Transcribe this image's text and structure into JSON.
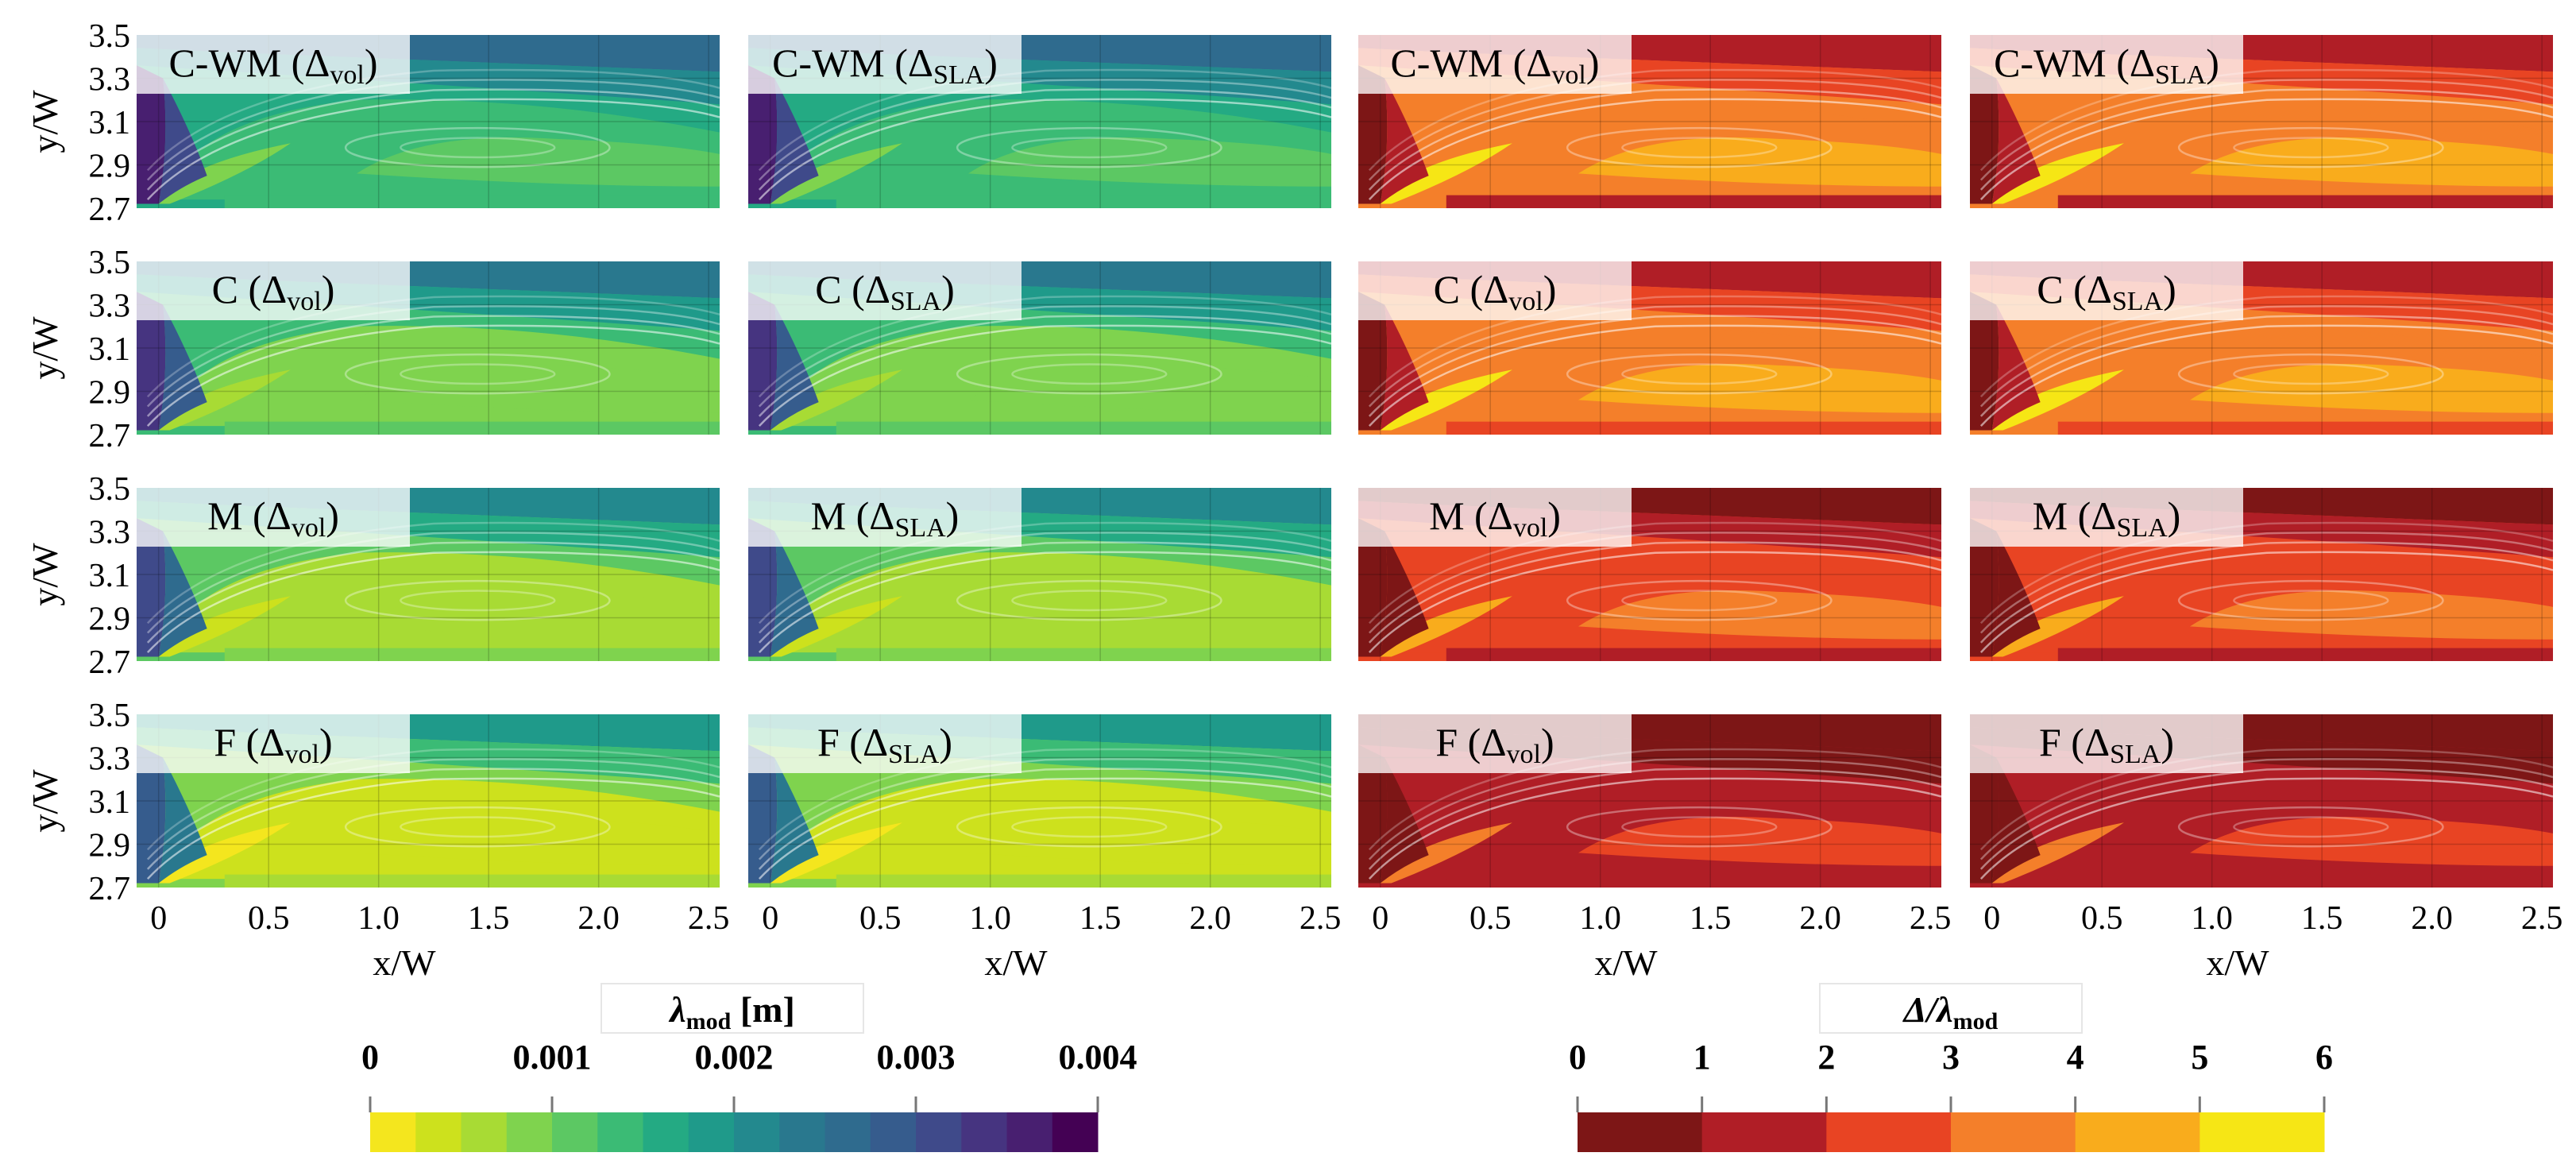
{
  "chart_data": {
    "type": "heatmap",
    "rows": [
      "C-WM",
      "C",
      "M",
      "F"
    ],
    "columns": [
      {
        "metric": "lambda_mod",
        "filter": "vol"
      },
      {
        "metric": "lambda_mod",
        "filter": "SLA"
      },
      {
        "metric": "delta_ratio",
        "filter": "vol"
      },
      {
        "metric": "delta_ratio",
        "filter": "SLA"
      }
    ],
    "panels": [
      {
        "row": 0,
        "col": 0,
        "label_base": "C-WM (Δ",
        "label_sub": "vol",
        "label_close": ")"
      },
      {
        "row": 0,
        "col": 1,
        "label_base": "C-WM (Δ",
        "label_sub": "SLA",
        "label_close": ")"
      },
      {
        "row": 0,
        "col": 2,
        "label_base": "C-WM (Δ",
        "label_sub": "vol",
        "label_close": ")"
      },
      {
        "row": 0,
        "col": 3,
        "label_base": "C-WM (Δ",
        "label_sub": "SLA",
        "label_close": ")"
      },
      {
        "row": 1,
        "col": 0,
        "label_base": "C (Δ",
        "label_sub": "vol",
        "label_close": ")"
      },
      {
        "row": 1,
        "col": 1,
        "label_base": "C (Δ",
        "label_sub": "SLA",
        "label_close": ")"
      },
      {
        "row": 1,
        "col": 2,
        "label_base": "C (Δ",
        "label_sub": "vol",
        "label_close": ")"
      },
      {
        "row": 1,
        "col": 3,
        "label_base": "C (Δ",
        "label_sub": "SLA",
        "label_close": ")"
      },
      {
        "row": 2,
        "col": 0,
        "label_base": "M (Δ",
        "label_sub": "vol",
        "label_close": ")"
      },
      {
        "row": 2,
        "col": 1,
        "label_base": "M (Δ",
        "label_sub": "SLA",
        "label_close": ")"
      },
      {
        "row": 2,
        "col": 2,
        "label_base": "M (Δ",
        "label_sub": "vol",
        "label_close": ")"
      },
      {
        "row": 2,
        "col": 3,
        "label_base": "M (Δ",
        "label_sub": "SLA",
        "label_close": ")"
      },
      {
        "row": 3,
        "col": 0,
        "label_base": "F (Δ",
        "label_sub": "vol",
        "label_close": ")"
      },
      {
        "row": 3,
        "col": 1,
        "label_base": "F (Δ",
        "label_sub": "SLA",
        "label_close": ")"
      },
      {
        "row": 3,
        "col": 2,
        "label_base": "F (Δ",
        "label_sub": "vol",
        "label_close": ")"
      },
      {
        "row": 3,
        "col": 3,
        "label_base": "F (Δ",
        "label_sub": "SLA",
        "label_close": ")"
      }
    ],
    "xlabel": "x/W",
    "ylabel": "y/W",
    "xlim": [
      -0.1,
      2.55
    ],
    "ylim": [
      2.7,
      3.5
    ],
    "xticks": [
      "0",
      "0.5",
      "1.0",
      "1.5",
      "2.0",
      "2.5"
    ],
    "yticks": [
      "3.5",
      "3.3",
      "3.1",
      "2.9",
      "2.7"
    ],
    "grid": true,
    "colorbars": [
      {
        "title_main": "λ",
        "title_sub": "mod",
        "title_unit": " [m]",
        "range": [
          0,
          0.004
        ],
        "ticks": [
          "0",
          "0.001",
          "0.002",
          "0.003",
          "0.004"
        ],
        "colors": [
          "#f4e61e",
          "#cde11d",
          "#a8db34",
          "#7fd34e",
          "#5cc863",
          "#3bbb75",
          "#24aa83",
          "#1f9a8a",
          "#23898e",
          "#29788e",
          "#2f6b8e",
          "#365c8d",
          "#3f4a8a",
          "#463480",
          "#481f70",
          "#440154"
        ]
      },
      {
        "title_main": "Δ/λ",
        "title_sub": "mod",
        "range": [
          0,
          6
        ],
        "ticks": [
          "0",
          "1",
          "2",
          "3",
          "4",
          "5",
          "6"
        ],
        "colors": [
          "#7d1616",
          "#b01e26",
          "#e84423",
          "#f47f2a",
          "#f9ac1c",
          "#f6e615"
        ]
      }
    ]
  }
}
